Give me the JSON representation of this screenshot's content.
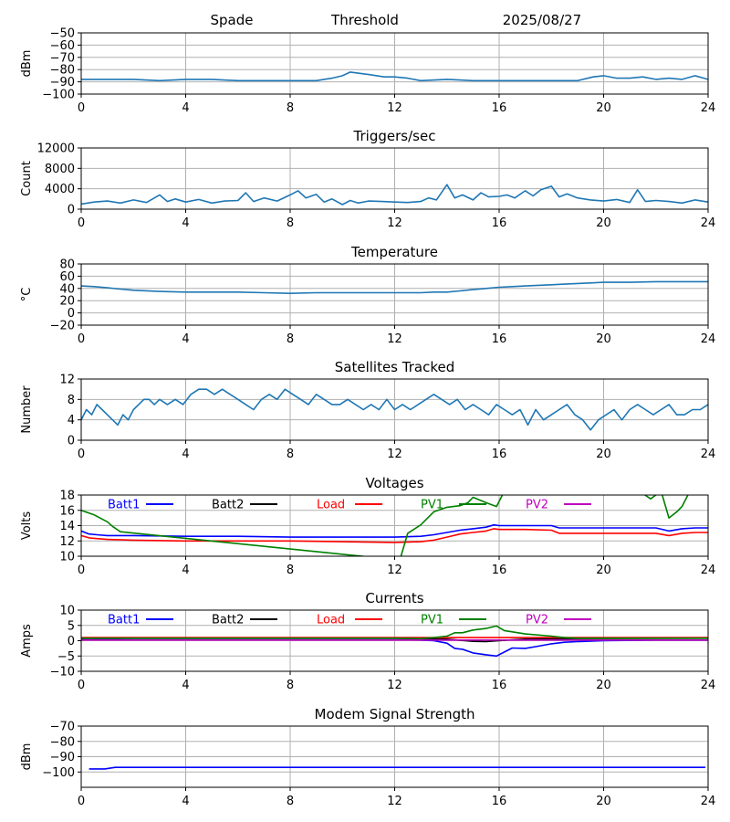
{
  "header": {
    "site": "Spade",
    "mode": "Threshold",
    "date": "2025/08/27"
  },
  "colors": {
    "default_line": "#1f77b4",
    "grid": "#b0b0b0",
    "axis": "#000000",
    "Batt1": "#0000ff",
    "Batt2": "#000000",
    "Load": "#ff0000",
    "PV1": "#008000",
    "PV2": "#bf00bf"
  },
  "chart_data": [
    {
      "id": "threshold",
      "type": "line",
      "title": "",
      "ylabel": "dBm",
      "xlim": [
        0,
        24
      ],
      "ylim": [
        -100,
        -50
      ],
      "xticks": [
        0,
        4,
        8,
        12,
        16,
        20,
        24
      ],
      "yticks": [
        -100,
        -90,
        -80,
        -70,
        -60,
        -50
      ],
      "grid": true,
      "series": [
        {
          "color": "#1f77b4",
          "x": [
            0,
            1,
            2,
            3,
            4,
            5,
            6,
            7,
            8,
            9,
            9.6,
            10,
            10.3,
            11,
            11.6,
            12,
            12.5,
            13,
            14,
            15,
            16,
            17,
            18,
            19,
            19.6,
            20,
            20.5,
            21,
            21.5,
            22,
            22.5,
            23,
            23.5,
            24
          ],
          "y": [
            -88,
            -88,
            -88,
            -89,
            -88,
            -88,
            -89,
            -89,
            -89,
            -89,
            -87,
            -85,
            -82,
            -84,
            -86,
            -86,
            -87,
            -89,
            -88,
            -89,
            -89,
            -89,
            -89,
            -89,
            -86,
            -85,
            -87,
            -87,
            -86,
            -88,
            -87,
            -88,
            -85,
            -88
          ]
        }
      ]
    },
    {
      "id": "triggers",
      "type": "line",
      "title": "Triggers/sec",
      "ylabel": "Count",
      "xlim": [
        0,
        24
      ],
      "ylim": [
        0,
        12000
      ],
      "xticks": [
        0,
        4,
        8,
        12,
        16,
        20,
        24
      ],
      "yticks": [
        0,
        4000,
        8000,
        12000
      ],
      "grid": true,
      "series": [
        {
          "color": "#1f77b4",
          "x": [
            0,
            0.5,
            1,
            1.5,
            2,
            2.5,
            3,
            3.3,
            3.6,
            4,
            4.5,
            5,
            5.5,
            6,
            6.3,
            6.6,
            7,
            7.5,
            8,
            8.3,
            8.6,
            9,
            9.3,
            9.6,
            10,
            10.3,
            10.6,
            11,
            11.5,
            12,
            12.5,
            13,
            13.3,
            13.6,
            14,
            14.3,
            14.6,
            15,
            15.3,
            15.6,
            16,
            16.3,
            16.6,
            17,
            17.3,
            17.6,
            18,
            18.3,
            18.6,
            19,
            19.5,
            20,
            20.5,
            21,
            21.3,
            21.6,
            22,
            22.5,
            23,
            23.5,
            24
          ],
          "y": [
            1000,
            1400,
            1600,
            1200,
            1800,
            1300,
            2800,
            1500,
            2000,
            1400,
            1900,
            1200,
            1600,
            1700,
            3200,
            1500,
            2200,
            1600,
            2800,
            3600,
            2200,
            2900,
            1400,
            2000,
            900,
            1700,
            1200,
            1600,
            1500,
            1400,
            1300,
            1500,
            2200,
            1800,
            4800,
            2200,
            2800,
            1800,
            3200,
            2400,
            2500,
            2800,
            2200,
            3600,
            2600,
            3800,
            4500,
            2400,
            3000,
            2200,
            1800,
            1600,
            1900,
            1300,
            3800,
            1500,
            1700,
            1500,
            1200,
            1800,
            1400
          ]
        }
      ]
    },
    {
      "id": "temperature",
      "type": "line",
      "title": "Temperature",
      "ylabel": "°C",
      "xlim": [
        0,
        24
      ],
      "ylim": [
        -20,
        80
      ],
      "xticks": [
        0,
        4,
        8,
        12,
        16,
        20,
        24
      ],
      "yticks": [
        -20,
        0,
        20,
        40,
        60,
        80
      ],
      "grid": true,
      "series": [
        {
          "color": "#1f77b4",
          "x": [
            0,
            0.5,
            1,
            1.5,
            2,
            3,
            4,
            5,
            6,
            7,
            8,
            9,
            10,
            11,
            12,
            13,
            13.5,
            14,
            14.5,
            15,
            15.5,
            16,
            16.5,
            17,
            17.5,
            18,
            18.5,
            19,
            19.5,
            20,
            21,
            22,
            23,
            24
          ],
          "y": [
            44,
            43,
            41,
            39,
            37,
            35,
            34,
            34,
            34,
            33,
            32,
            33,
            33,
            33,
            33,
            33,
            34,
            34,
            36,
            38,
            40,
            42,
            43,
            44,
            45,
            46,
            47,
            48,
            49,
            50,
            50,
            51,
            51,
            51
          ]
        }
      ]
    },
    {
      "id": "satellites",
      "type": "line",
      "title": "Satellites Tracked",
      "ylabel": "Number",
      "xlim": [
        0,
        24
      ],
      "ylim": [
        0,
        12
      ],
      "xticks": [
        0,
        4,
        8,
        12,
        16,
        20,
        24
      ],
      "yticks": [
        0,
        4,
        8,
        12
      ],
      "grid": true,
      "series": [
        {
          "color": "#1f77b4",
          "x": [
            0,
            0.2,
            0.4,
            0.6,
            0.8,
            1,
            1.2,
            1.4,
            1.6,
            1.8,
            2,
            2.2,
            2.4,
            2.6,
            2.8,
            3,
            3.3,
            3.6,
            3.9,
            4.2,
            4.5,
            4.8,
            5.1,
            5.4,
            5.7,
            6,
            6.3,
            6.6,
            6.9,
            7.2,
            7.5,
            7.8,
            8.1,
            8.4,
            8.7,
            9,
            9.3,
            9.6,
            9.9,
            10.2,
            10.5,
            10.8,
            11.1,
            11.4,
            11.7,
            12,
            12.3,
            12.6,
            12.9,
            13.2,
            13.5,
            13.8,
            14.1,
            14.4,
            14.7,
            15,
            15.3,
            15.6,
            15.9,
            16.2,
            16.5,
            16.8,
            17.1,
            17.4,
            17.7,
            18,
            18.3,
            18.6,
            18.9,
            19.2,
            19.5,
            19.8,
            20.1,
            20.4,
            20.7,
            21,
            21.3,
            21.6,
            21.9,
            22.2,
            22.5,
            22.8,
            23.1,
            23.4,
            23.7,
            24
          ],
          "y": [
            4,
            6,
            5,
            7,
            6,
            5,
            4,
            3,
            5,
            4,
            6,
            7,
            8,
            8,
            7,
            8,
            7,
            8,
            7,
            9,
            10,
            10,
            9,
            10,
            9,
            8,
            7,
            6,
            8,
            9,
            8,
            10,
            9,
            8,
            7,
            9,
            8,
            7,
            7,
            8,
            7,
            6,
            7,
            6,
            8,
            6,
            7,
            6,
            7,
            8,
            9,
            8,
            7,
            8,
            6,
            7,
            6,
            5,
            7,
            6,
            5,
            6,
            3,
            6,
            4,
            5,
            6,
            7,
            5,
            4,
            2,
            4,
            5,
            6,
            4,
            6,
            7,
            6,
            5,
            6,
            7,
            5,
            5,
            6,
            6,
            7
          ]
        }
      ]
    },
    {
      "id": "voltages",
      "type": "line",
      "title": "Voltages",
      "ylabel": "Volts",
      "xlim": [
        0,
        24
      ],
      "ylim": [
        10,
        18
      ],
      "xticks": [
        0,
        4,
        8,
        12,
        16,
        20,
        24
      ],
      "yticks": [
        10,
        12,
        14,
        16,
        18
      ],
      "grid": true,
      "legend": "top inline",
      "series": [
        {
          "name": "Batt1",
          "color": "#0000ff",
          "x": [
            0,
            0.3,
            0.6,
            1,
            2,
            4,
            6,
            8,
            10,
            12,
            13,
            13.5,
            14,
            14.5,
            15,
            15.5,
            15.8,
            16,
            17,
            18,
            18.3,
            19,
            20,
            21,
            22,
            22.5,
            23,
            23.5,
            24
          ],
          "y": [
            13.3,
            12.9,
            12.8,
            12.7,
            12.7,
            12.6,
            12.6,
            12.5,
            12.5,
            12.5,
            12.6,
            12.8,
            13.1,
            13.4,
            13.6,
            13.8,
            14.1,
            14.0,
            14.0,
            14.0,
            13.7,
            13.7,
            13.7,
            13.7,
            13.7,
            13.3,
            13.6,
            13.7,
            13.7
          ]
        },
        {
          "name": "Batt2",
          "color": "#000000",
          "x": [],
          "y": []
        },
        {
          "name": "Load",
          "color": "#ff0000",
          "x": [
            0,
            0.3,
            0.6,
            1,
            2,
            4,
            6,
            8,
            10,
            12,
            13,
            13.5,
            14,
            14.5,
            15,
            15.5,
            15.8,
            16,
            17,
            18,
            18.3,
            19,
            20,
            21,
            22,
            22.5,
            23,
            23.5,
            24
          ],
          "y": [
            12.7,
            12.4,
            12.3,
            12.2,
            12.1,
            12.0,
            12.0,
            12.0,
            11.9,
            11.8,
            11.9,
            12.1,
            12.5,
            12.9,
            13.1,
            13.3,
            13.6,
            13.5,
            13.5,
            13.4,
            13.0,
            13.0,
            13.0,
            13.0,
            13.0,
            12.7,
            13.0,
            13.1,
            13.1
          ]
        },
        {
          "name": "PV1",
          "color": "#008000",
          "x": [
            0,
            0.5,
            1,
            1.2,
            1.5,
            12.2,
            12.5,
            13,
            13.5,
            14,
            14.5,
            14.8,
            15,
            15.5,
            15.9,
            16.2,
            21.5,
            21.8,
            22.2,
            22.5,
            22.8,
            23,
            23.3
          ],
          "y": [
            16,
            15.4,
            14.5,
            13.9,
            13.2,
            9.5,
            13.0,
            14.1,
            15.8,
            16.4,
            16.6,
            17.0,
            17.7,
            17.0,
            16.5,
            18.5,
            18.2,
            17.5,
            18.5,
            15.0,
            15.8,
            16.5,
            18.5
          ]
        },
        {
          "name": "PV2",
          "color": "#bf00bf",
          "x": [],
          "y": []
        }
      ]
    },
    {
      "id": "currents",
      "type": "line",
      "title": "Currents",
      "ylabel": "Amps",
      "xlim": [
        0,
        24
      ],
      "ylim": [
        -10,
        10
      ],
      "xticks": [
        0,
        4,
        8,
        12,
        16,
        20,
        24
      ],
      "yticks": [
        -10,
        -5,
        0,
        5,
        10
      ],
      "grid": true,
      "legend": "top inline",
      "series": [
        {
          "name": "Batt1",
          "color": "#0000ff",
          "x": [
            0,
            2,
            4,
            6,
            8,
            10,
            12,
            13,
            13.5,
            14,
            14.3,
            14.6,
            15,
            15.5,
            15.9,
            16.5,
            17,
            17.5,
            18,
            18.5,
            19,
            20,
            22,
            24
          ],
          "y": [
            0.5,
            0.3,
            0.3,
            0.3,
            0.3,
            0.3,
            0.3,
            0.2,
            0,
            -0.8,
            -2.5,
            -2.8,
            -4,
            -4.6,
            -5,
            -2.4,
            -2.5,
            -1.8,
            -1,
            -0.5,
            -0.3,
            0,
            0.2,
            0.2
          ]
        },
        {
          "name": "Batt2",
          "color": "#000000",
          "x": [
            0,
            12,
            14,
            15,
            15.5,
            16,
            16.5,
            17,
            18,
            24
          ],
          "y": [
            0.8,
            0.8,
            0.5,
            -0.2,
            -0.3,
            0,
            0.3,
            0.5,
            0.7,
            0.8
          ]
        },
        {
          "name": "Load",
          "color": "#ff0000",
          "x": [
            0,
            4,
            8,
            12,
            16,
            20,
            24
          ],
          "y": [
            1.0,
            1.0,
            1.0,
            1.0,
            1.0,
            1.0,
            1.0
          ]
        },
        {
          "name": "PV1",
          "color": "#008000",
          "x": [
            0,
            12,
            13,
            13.5,
            14,
            14.3,
            14.6,
            15,
            15.5,
            15.9,
            16.2,
            17,
            18,
            18.5,
            19,
            20,
            22,
            24
          ],
          "y": [
            0.8,
            0.8,
            0.7,
            1,
            1.5,
            2.6,
            2.6,
            3.5,
            4,
            4.8,
            3.3,
            2.2,
            1.5,
            1,
            0.8,
            0.8,
            0.8,
            0.8
          ]
        },
        {
          "name": "PV2",
          "color": "#bf00bf",
          "x": [
            0,
            4,
            8,
            12,
            16,
            20,
            24
          ],
          "y": [
            0.2,
            0.2,
            0.2,
            0.2,
            0.2,
            0.2,
            0.2
          ]
        }
      ]
    },
    {
      "id": "modem",
      "type": "line",
      "title": "Modem Signal Strength",
      "ylabel": "dBm",
      "xlim": [
        0,
        24
      ],
      "ylim": [
        -110,
        -70
      ],
      "xticks": [
        0,
        4,
        8,
        12,
        16,
        20,
        24
      ],
      "yticks": [
        -100,
        -90,
        -80,
        -70
      ],
      "grid": true,
      "series": [
        {
          "color": "#0000ff",
          "x": [
            0.3,
            0.9,
            1.3,
            4,
            8,
            12,
            16,
            20,
            23.9
          ],
          "y": [
            -98,
            -98,
            -97,
            -97,
            -97,
            -97,
            -97,
            -97,
            -97
          ]
        }
      ]
    }
  ]
}
